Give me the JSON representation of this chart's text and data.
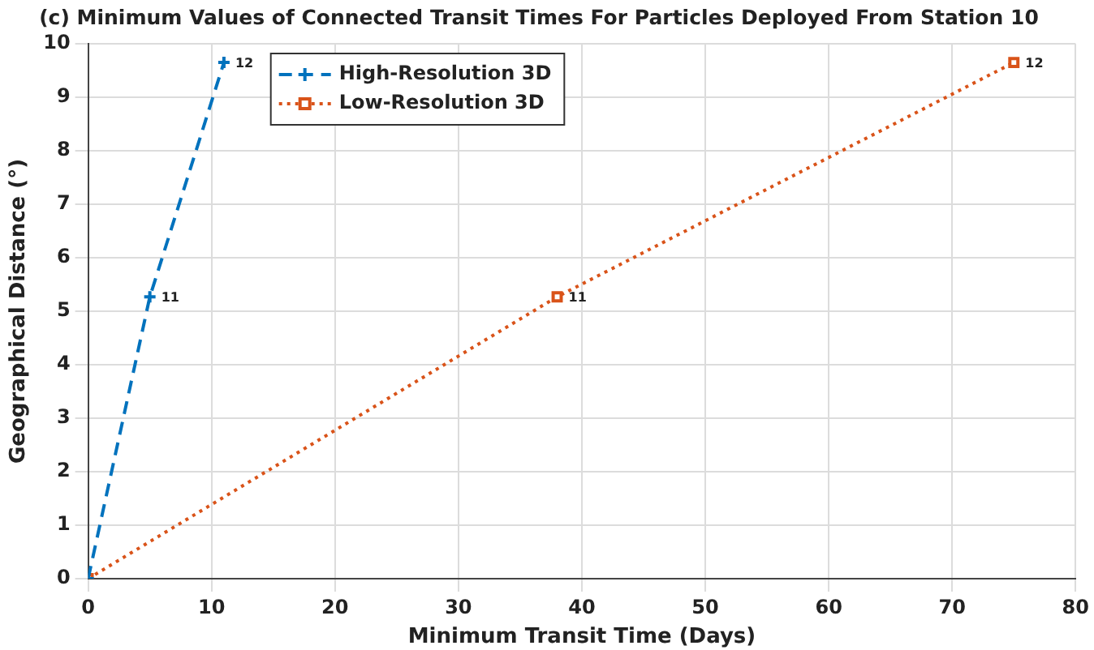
{
  "chart_data": {
    "type": "line",
    "title": "(c) Minimum Values of Connected Transit Times For Particles Deployed From Station 10",
    "xlabel": "Minimum Transit Time (Days)",
    "ylabel": "Geographical Distance (°)",
    "series": [
      {
        "name": "High-Resolution 3D",
        "color": "#0072bd",
        "x": [
          0,
          5,
          11
        ],
        "values": [
          0,
          5.27,
          9.65
        ],
        "marker": "cross",
        "line_style": "dashed"
      },
      {
        "name": "Low-Resolution 3D",
        "color": "#d95319",
        "x": [
          0,
          38,
          75
        ],
        "values": [
          0,
          5.27,
          9.65
        ],
        "marker": "square",
        "line_style": "dotted"
      }
    ],
    "xlim": [
      0,
      80
    ],
    "xticks": [
      0,
      10,
      20,
      30,
      40,
      50,
      60,
      70,
      80
    ],
    "ylim": [
      0,
      10
    ],
    "yticks": [
      0,
      1,
      2,
      3,
      4,
      5,
      6,
      7,
      8,
      9,
      10
    ],
    "grid": true,
    "legend": "top left",
    "annotations": [
      {
        "text": "11",
        "x": 5,
        "y": 5.27
      },
      {
        "text": "12",
        "x": 11,
        "y": 9.65
      },
      {
        "text": "11",
        "x": 38,
        "y": 5.27
      },
      {
        "text": "12",
        "x": 75,
        "y": 9.65
      }
    ]
  }
}
